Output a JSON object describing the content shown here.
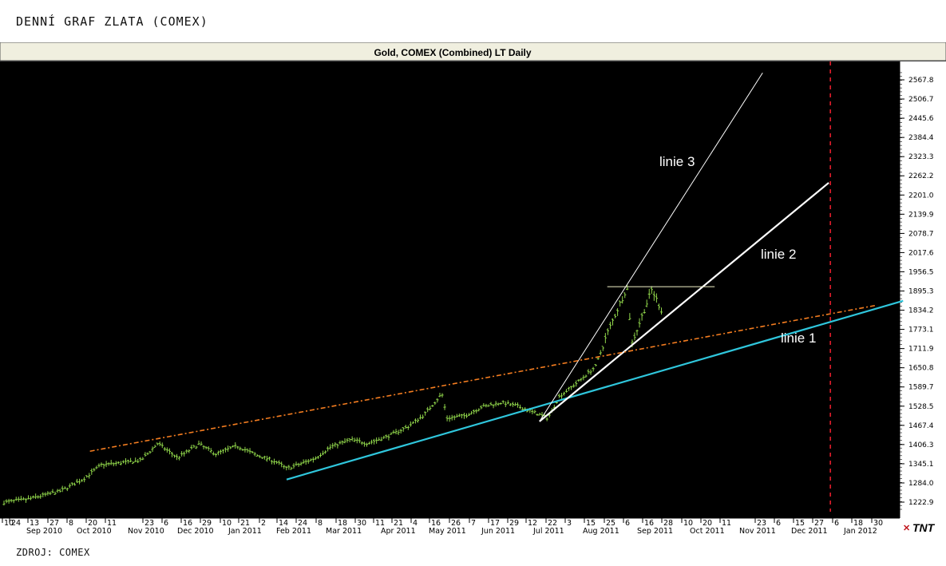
{
  "caption": "DENNÍ GRAF ZLATA (COMEX)",
  "source": "ZDROJ: COMEX",
  "chart_data": {
    "type": "bar",
    "title": "Gold, COMEX (Combined) LT Daily",
    "price_axis": {
      "ticks": [
        "2567.8",
        "2506.7",
        "2445.6",
        "2384.4",
        "2323.3",
        "2262.2",
        "2201.0",
        "2139.9",
        "2078.7",
        "2017.6",
        "1956.5",
        "1895.3",
        "1834.2",
        "1773.1",
        "1711.9",
        "1650.8",
        "1589.7",
        "1528.5",
        "1467.4",
        "1406.3",
        "1345.1",
        "1284.0",
        "1222.9"
      ],
      "range": [
        1200,
        2595
      ]
    },
    "date_ticks": [
      "10",
      "24",
      "13",
      "27",
      "8",
      "20",
      "11",
      "23",
      "6",
      "16",
      "29",
      "10",
      "21",
      "2",
      "14",
      "24",
      "8",
      "18",
      "30",
      "11",
      "21",
      "4",
      "16",
      "26",
      "7",
      "17",
      "29",
      "12",
      "22",
      "3",
      "15",
      "25",
      "6",
      "16",
      "28",
      "10",
      "20",
      "11",
      "23",
      "6",
      "15",
      "27",
      "6",
      "18",
      "30"
    ],
    "month_labels": [
      "Sep 2010",
      "Oct 2010",
      "Nov 2010",
      "Dec 2010",
      "Jan 2011",
      "Feb 2011",
      "Mar 2011",
      "Apr 2011",
      "May 2011",
      "Jun 2011",
      "Jul 2011",
      "Aug 2011",
      "Sep 2011",
      "Oct 2011",
      "Nov 2011",
      "Dec 2011",
      "Jan 2012"
    ],
    "price_path": [
      [
        "2010-08-10",
        1222
      ],
      [
        "2010-08-24",
        1232
      ],
      [
        "2010-09-13",
        1258
      ],
      [
        "2010-09-27",
        1296
      ],
      [
        "2010-10-08",
        1342
      ],
      [
        "2010-10-20",
        1348
      ],
      [
        "2010-11-01",
        1356
      ],
      [
        "2010-11-11",
        1410
      ],
      [
        "2010-11-23",
        1364
      ],
      [
        "2010-12-06",
        1408
      ],
      [
        "2010-12-16",
        1376
      ],
      [
        "2010-12-29",
        1402
      ],
      [
        "2011-01-10",
        1372
      ],
      [
        "2011-01-21",
        1353
      ],
      [
        "2011-01-28",
        1330
      ],
      [
        "2011-02-02",
        1338
      ],
      [
        "2011-02-14",
        1362
      ],
      [
        "2011-02-24",
        1400
      ],
      [
        "2011-03-08",
        1422
      ],
      [
        "2011-03-18",
        1410
      ],
      [
        "2011-03-30",
        1432
      ],
      [
        "2011-04-11",
        1462
      ],
      [
        "2011-04-21",
        1500
      ],
      [
        "2011-05-02",
        1568
      ],
      [
        "2011-05-05",
        1490
      ],
      [
        "2011-05-16",
        1498
      ],
      [
        "2011-05-26",
        1526
      ],
      [
        "2011-06-07",
        1540
      ],
      [
        "2011-06-17",
        1528
      ],
      [
        "2011-06-29",
        1504
      ],
      [
        "2011-07-05",
        1490
      ],
      [
        "2011-07-12",
        1560
      ],
      [
        "2011-07-22",
        1600
      ],
      [
        "2011-08-03",
        1655
      ],
      [
        "2011-08-10",
        1760
      ],
      [
        "2011-08-22",
        1908
      ],
      [
        "2011-08-25",
        1730
      ],
      [
        "2011-09-06",
        1900
      ],
      [
        "2011-09-13",
        1820
      ]
    ],
    "trend_lines": [
      {
        "name": "linie 1",
        "color": "#2fc6dc",
        "points": [
          [
            "2011-01-28",
            1295
          ],
          [
            "2012-02-05",
            1864
          ]
        ]
      },
      {
        "name": "linie 2",
        "color": "#ffffff",
        "points": [
          [
            "2011-06-30",
            1480
          ],
          [
            "2011-12-22",
            2240
          ]
        ]
      },
      {
        "name": "linie 3",
        "color": "#ffffff",
        "points": [
          [
            "2011-06-30",
            1480
          ],
          [
            "2011-11-12",
            2590
          ]
        ]
      },
      {
        "name": "",
        "color": "#f47d20",
        "style": "dash-dot",
        "points": [
          [
            "2010-10-01",
            1385
          ],
          [
            "2012-01-20",
            1850
          ]
        ]
      },
      {
        "name": "",
        "color": "#ffffff",
        "style": "thin",
        "points": [
          [
            "2011-08-10",
            1909
          ],
          [
            "2011-10-14",
            1909
          ]
        ]
      }
    ],
    "marker_line": {
      "date": "2011-12-23",
      "color": "#e21d2b",
      "style": "dashed"
    },
    "logo": "TNT"
  }
}
